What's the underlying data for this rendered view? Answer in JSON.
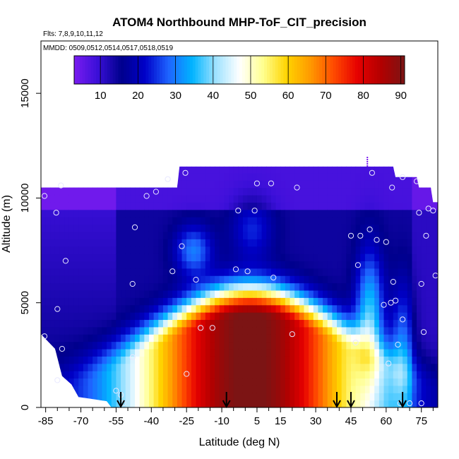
{
  "chart_data": {
    "type": "heatmap",
    "title": "ATOM4 Northbound MHP-ToF_CIT_precision",
    "subtitle_flights": "Flts: 7,8,9,10,11,12",
    "subtitle_dates": "MMDD: 0509,0512,0514,0517,0518,0519",
    "xlabel": "Latitude (deg N)",
    "ylabel": "Altitude (m)",
    "xlim": [
      -87,
      82
    ],
    "ylim": [
      0,
      17500
    ],
    "x_ticks": [
      -85,
      -70,
      -55,
      -40,
      -25,
      -10,
      5,
      15,
      30,
      45,
      60,
      75
    ],
    "x_tick_labels": [
      "-85",
      "-70",
      "-55",
      "-40",
      "-25",
      "-10",
      "5",
      "15",
      "30",
      "45",
      "60",
      "75"
    ],
    "y_ticks": [
      0,
      5000,
      10000,
      15000
    ],
    "y_tick_labels": [
      "0",
      "5000",
      "10000",
      "15000"
    ],
    "colorbar": {
      "min": 3,
      "max": 91,
      "ticks": [
        10,
        20,
        30,
        40,
        50,
        60,
        70,
        80,
        90
      ],
      "tick_labels": [
        "10",
        "20",
        "30",
        "40",
        "50",
        "60",
        "70",
        "80",
        "90"
      ],
      "colors": [
        "#7a1cf0",
        "#3a0fd8",
        "#00008c",
        "#0000c8",
        "#1e64ff",
        "#00b4ff",
        "#9ee2ff",
        "#ffffff",
        "#ffff90",
        "#ffd400",
        "#ff9a00",
        "#ff4a00",
        "#e60000",
        "#b20000",
        "#7c1414"
      ]
    },
    "column_tops_altitude_m": [
      {
        "lat": -87,
        "top": 10500
      },
      {
        "lat": -29,
        "top": 10500
      },
      {
        "lat": -28,
        "top": 11500
      },
      {
        "lat": 63,
        "top": 11500
      },
      {
        "lat": 64,
        "top": 11000
      },
      {
        "lat": 73,
        "top": 11000
      },
      {
        "lat": 74,
        "top": 10500
      },
      {
        "lat": 79,
        "top": 10500
      },
      {
        "lat": 80,
        "top": 9800
      },
      {
        "lat": 82,
        "top": 9800
      }
    ],
    "column_bottoms_altitude_m": [
      {
        "lat": -87,
        "top": 3500
      },
      {
        "lat": -81,
        "top": 2800
      },
      {
        "lat": -78,
        "top": 1500
      },
      {
        "lat": -74,
        "top": 1100
      },
      {
        "lat": -71,
        "top": 500
      },
      {
        "lat": -59,
        "top": 300
      },
      {
        "lat": -57,
        "top": 0
      },
      {
        "lat": 76,
        "top": 0
      },
      {
        "lat": 82,
        "top": 0
      }
    ],
    "descent_arrows_lat": [
      -53,
      -8,
      39,
      45,
      67
    ],
    "sample_points": [
      {
        "lat": -85.5,
        "alt": 10100
      },
      {
        "lat": -78.5,
        "alt": 10600
      },
      {
        "lat": -80.5,
        "alt": 9300
      },
      {
        "lat": -76.5,
        "alt": 7000
      },
      {
        "lat": -80,
        "alt": 4700
      },
      {
        "lat": -85.5,
        "alt": 3400
      },
      {
        "lat": -78,
        "alt": 2800
      },
      {
        "lat": -80,
        "alt": 1300
      },
      {
        "lat": -55,
        "alt": 800
      },
      {
        "lat": -53,
        "alt": 600
      },
      {
        "lat": -52,
        "alt": 200
      },
      {
        "lat": -48,
        "alt": 2400
      },
      {
        "lat": -48,
        "alt": 5900
      },
      {
        "lat": -47,
        "alt": 8600
      },
      {
        "lat": -42,
        "alt": 10100
      },
      {
        "lat": -38,
        "alt": 10300
      },
      {
        "lat": -33,
        "alt": 10900
      },
      {
        "lat": -31,
        "alt": 6500
      },
      {
        "lat": -27,
        "alt": 7700
      },
      {
        "lat": -25.5,
        "alt": 11200
      },
      {
        "lat": -21,
        "alt": 6100
      },
      {
        "lat": -19,
        "alt": 3800
      },
      {
        "lat": -25,
        "alt": 1600
      },
      {
        "lat": -14,
        "alt": 3800
      },
      {
        "lat": -4,
        "alt": 6600
      },
      {
        "lat": -3,
        "alt": 9400
      },
      {
        "lat": 1,
        "alt": 6500
      },
      {
        "lat": 4,
        "alt": 9400
      },
      {
        "lat": 5,
        "alt": 10700
      },
      {
        "lat": 11,
        "alt": 10700
      },
      {
        "lat": 12,
        "alt": 6200
      },
      {
        "lat": 20,
        "alt": 3500
      },
      {
        "lat": 22,
        "alt": 10500
      },
      {
        "lat": 45,
        "alt": 8200
      },
      {
        "lat": 47,
        "alt": 3100
      },
      {
        "lat": 48,
        "alt": 6800
      },
      {
        "lat": 49,
        "alt": 8200
      },
      {
        "lat": 53,
        "alt": 8500
      },
      {
        "lat": 54,
        "alt": 11200
      },
      {
        "lat": 56,
        "alt": 8000
      },
      {
        "lat": 59,
        "alt": 4900
      },
      {
        "lat": 60,
        "alt": 7900
      },
      {
        "lat": 61,
        "alt": 2100
      },
      {
        "lat": 62,
        "alt": 5000
      },
      {
        "lat": 62.5,
        "alt": 10500
      },
      {
        "lat": 63,
        "alt": 6000
      },
      {
        "lat": 64,
        "alt": 5100
      },
      {
        "lat": 65,
        "alt": 3000
      },
      {
        "lat": 67,
        "alt": 11000
      },
      {
        "lat": 67,
        "alt": 4200
      },
      {
        "lat": 70,
        "alt": 200
      },
      {
        "lat": 73,
        "alt": 10800
      },
      {
        "lat": 74,
        "alt": 9300
      },
      {
        "lat": 75,
        "alt": 5900
      },
      {
        "lat": 76,
        "alt": 3600
      },
      {
        "lat": 77,
        "alt": 8200
      },
      {
        "lat": 78,
        "alt": 9500
      },
      {
        "lat": 80,
        "alt": 9400
      },
      {
        "lat": 81,
        "alt": 6300
      },
      {
        "lat": 75,
        "alt": 200
      },
      {
        "lat": 66,
        "alt": 200
      }
    ]
  }
}
